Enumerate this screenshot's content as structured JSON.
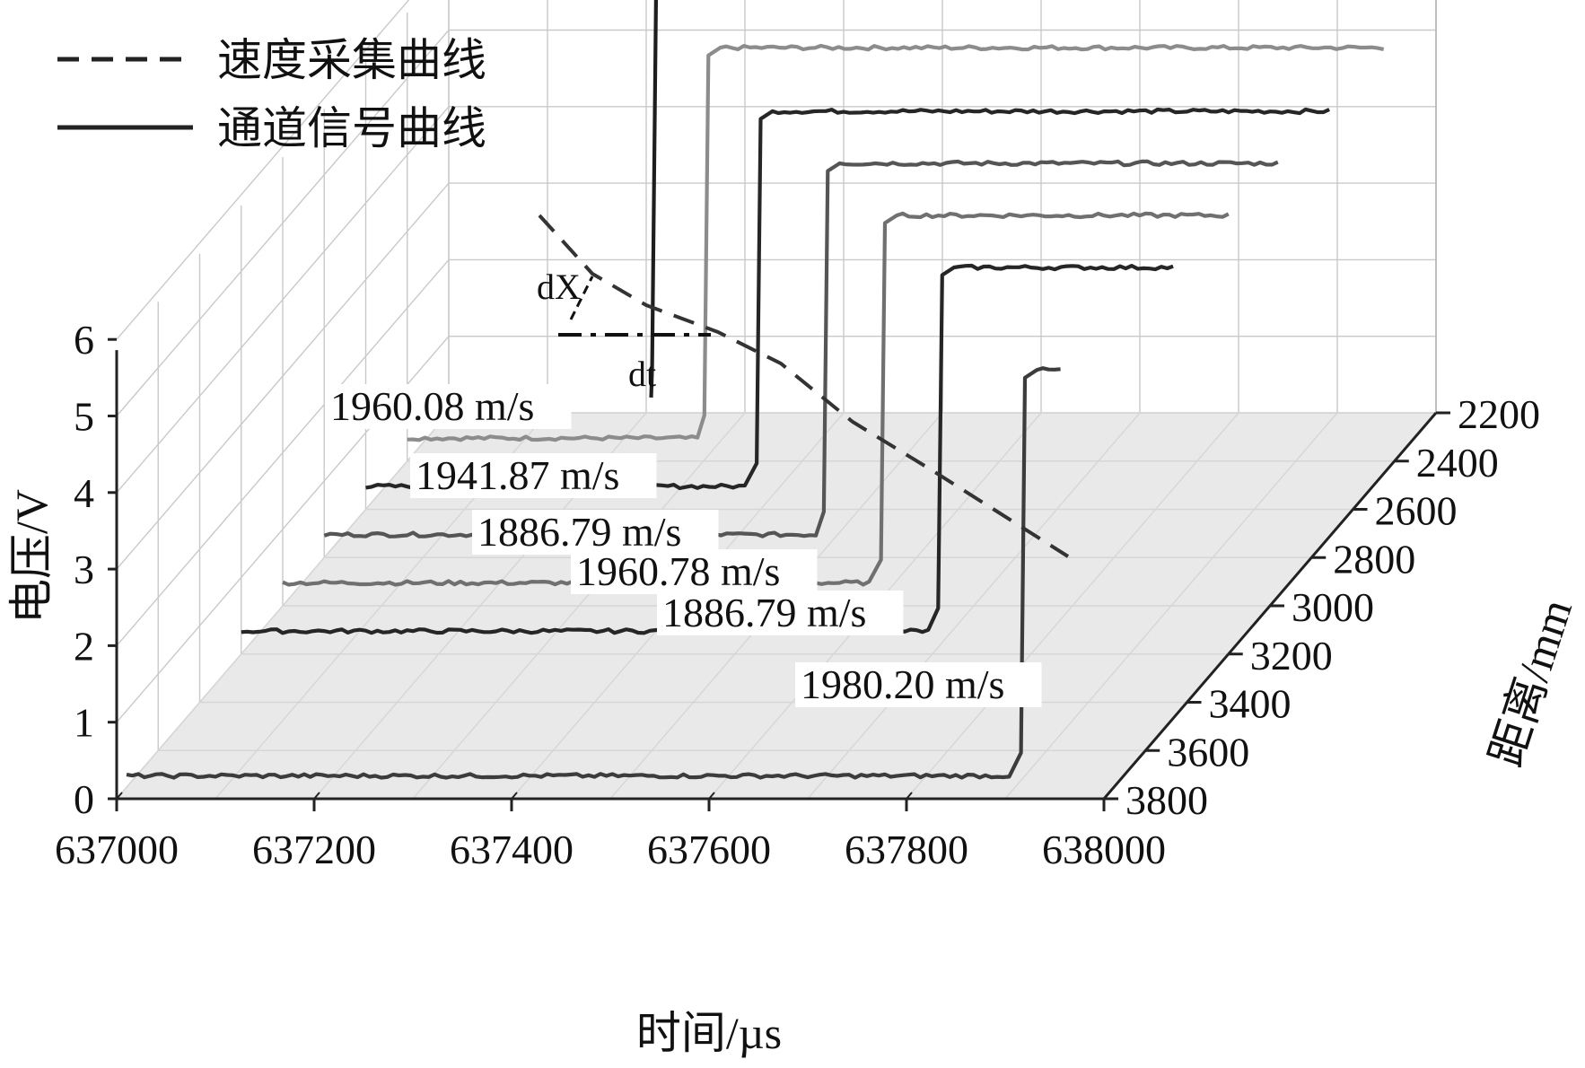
{
  "chart_data": {
    "type": "line",
    "style": "3d-waterfall",
    "xlabel": "时间/µs",
    "ylabel": "电压/V",
    "zlabel": "距离/mm",
    "x_ticks": [
      "637000",
      "637200",
      "637400",
      "637600",
      "637800",
      "638000"
    ],
    "y_ticks": [
      "0",
      "1",
      "2",
      "3",
      "4",
      "5",
      "6"
    ],
    "z_ticks": [
      "2200",
      "2400",
      "2600",
      "2800",
      "3000",
      "3200",
      "3400",
      "3600",
      "3800"
    ],
    "xlim": [
      637000,
      638000
    ],
    "ylim": [
      0,
      6
    ],
    "zlim": [
      2200,
      3800
    ],
    "grid": true,
    "legend": {
      "position": "top-left",
      "entries": [
        {
          "label": "速度采集曲线",
          "style": "dashed"
        },
        {
          "label": "通道信号曲线",
          "style": "solid"
        }
      ]
    },
    "series": [
      {
        "distance_mm": 2200,
        "rise_time_us": 637210,
        "low_v": 0.3,
        "high_v": 5.6,
        "color": "#1e1e1e"
      },
      {
        "distance_mm": 2400,
        "rise_time_us": 637305,
        "low_v": 0.3,
        "high_v": 5.4,
        "color": "#8c8c8c"
      },
      {
        "distance_mm": 2600,
        "rise_time_us": 637400,
        "low_v": 0.3,
        "high_v": 5.2,
        "color": "#262626"
      },
      {
        "distance_mm": 2800,
        "rise_time_us": 637510,
        "low_v": 0.3,
        "high_v": 5.15,
        "color": "#555555"
      },
      {
        "distance_mm": 3000,
        "rise_time_us": 637610,
        "low_v": 0.3,
        "high_v": 5.1,
        "color": "#707070"
      },
      {
        "distance_mm": 3200,
        "rise_time_us": 637710,
        "low_v": 0.3,
        "high_v": 5.05,
        "color": "#262626"
      },
      {
        "distance_mm": 3800,
        "rise_time_us": 637920,
        "low_v": 0.3,
        "high_v": 5.6,
        "color": "#3c3c3c"
      }
    ],
    "velocity_labels": [
      "1960.08 m/s",
      "1941.87 m/s",
      "1886.79 m/s",
      "1960.78 m/s",
      "1886.79 m/s",
      "1980.20 m/s"
    ],
    "annotations": {
      "dx": "dX",
      "dt": "dt"
    }
  }
}
